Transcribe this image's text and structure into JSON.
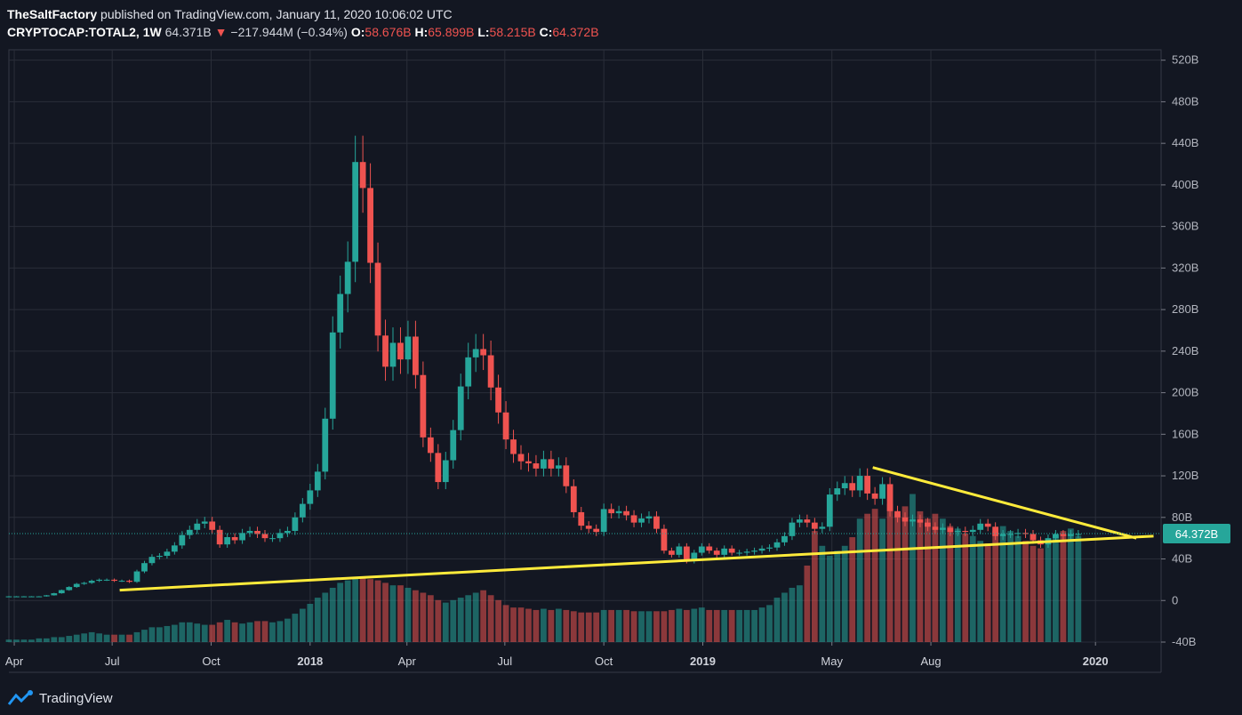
{
  "header": {
    "author": "TheSaltFactory",
    "published": "published on TradingView.com, January 11, 2020 10:06:02 UTC",
    "symbol": "CRYPTOCAP:TOTAL2, 1W",
    "last": "64.371B",
    "change": "−217.944M (−0.34%)",
    "open_label": "O:",
    "open": "58.676B",
    "high_label": "H:",
    "high": "65.899B",
    "low_label": "L:",
    "low": "58.215B",
    "close_label": "C:",
    "close": "64.372B"
  },
  "footer": {
    "brand": "TradingView"
  },
  "colors": {
    "background": "#131722",
    "grid": "#2a2e39",
    "up": "#26a69a",
    "down": "#ef5350",
    "trendline": "#ffeb3b",
    "price_tag": "#26a69a"
  },
  "chart_data": {
    "type": "candlestick",
    "title": "",
    "timeframe": "1W",
    "x_start": "2017-03-27",
    "x_end": "2020-03-02",
    "ylim": [
      -40,
      530
    ],
    "yticks": [
      -40,
      0,
      40,
      80,
      120,
      160,
      200,
      240,
      280,
      320,
      360,
      400,
      440,
      480,
      520
    ],
    "ytick_labels": [
      "-40B",
      "0",
      "40B",
      "80B",
      "120B",
      "160B",
      "200B",
      "240B",
      "280B",
      "320B",
      "360B",
      "400B",
      "440B",
      "480B",
      "520B"
    ],
    "xticks": [
      {
        "label": "Apr",
        "date": "2017-04-01"
      },
      {
        "label": "Jul",
        "date": "2017-07-01"
      },
      {
        "label": "Oct",
        "date": "2017-10-01"
      },
      {
        "label": "2018",
        "date": "2018-01-01",
        "bold": true
      },
      {
        "label": "Apr",
        "date": "2018-04-01"
      },
      {
        "label": "Jul",
        "date": "2018-07-01"
      },
      {
        "label": "Oct",
        "date": "2018-10-01"
      },
      {
        "label": "2019",
        "date": "2019-01-01",
        "bold": true
      },
      {
        "label": "May",
        "date": "2019-05-01"
      },
      {
        "label": "Aug",
        "date": "2019-08-01"
      },
      {
        "label": "2020",
        "date": "2020-01-01",
        "bold": true
      }
    ],
    "last_price": 64.372,
    "last_price_label": "64.372B",
    "grid": true,
    "closes": [
      4,
      4,
      4,
      4,
      4,
      5,
      7,
      10,
      13,
      16,
      17,
      19,
      20,
      20,
      19,
      19,
      18,
      28,
      36,
      42,
      43,
      47,
      53,
      63,
      68,
      74,
      76,
      68,
      54,
      61,
      58,
      65,
      67,
      64,
      60,
      60,
      65,
      67,
      80,
      93,
      106,
      124,
      175,
      258,
      295,
      326,
      422,
      397,
      325,
      255,
      225,
      248,
      232,
      254,
      217,
      157,
      142,
      114,
      135,
      164,
      206,
      234,
      242,
      236,
      205,
      181,
      155,
      141,
      134,
      132,
      127,
      136,
      127,
      130,
      110,
      85,
      72,
      69,
      66,
      88,
      84,
      86,
      82,
      75,
      79,
      81,
      69,
      48,
      44,
      52,
      38,
      46,
      52,
      48,
      44,
      50,
      46,
      46,
      47,
      48,
      50,
      51,
      56,
      62,
      75,
      78,
      75,
      69,
      71,
      102,
      108,
      113,
      106,
      120,
      103,
      98,
      112,
      86,
      80,
      76,
      78,
      75,
      71,
      68,
      70,
      66,
      67,
      66,
      68,
      74,
      71,
      62,
      64,
      64,
      65,
      64,
      58,
      54,
      60,
      64,
      62,
      64,
      64
    ],
    "volume_note": "volume histogram shown at bottom (values read in chart units)",
    "volumes": [
      2,
      2,
      2,
      2,
      3,
      3,
      4,
      4,
      5,
      6,
      7,
      8,
      7,
      6,
      6,
      6,
      6,
      8,
      10,
      12,
      12,
      13,
      14,
      16,
      16,
      15,
      14,
      14,
      16,
      18,
      16,
      15,
      16,
      17,
      17,
      16,
      17,
      19,
      23,
      27,
      31,
      36,
      40,
      44,
      48,
      50,
      52,
      52,
      51,
      50,
      48,
      46,
      46,
      44,
      42,
      40,
      38,
      34,
      32,
      34,
      36,
      38,
      40,
      42,
      38,
      34,
      30,
      28,
      28,
      27,
      26,
      27,
      26,
      27,
      26,
      25,
      24,
      24,
      24,
      26,
      26,
      26,
      26,
      25,
      25,
      25,
      25,
      25,
      26,
      27,
      26,
      27,
      28,
      26,
      26,
      26,
      26,
      26,
      26,
      26,
      28,
      30,
      36,
      40,
      44,
      46,
      62,
      90,
      78,
      70,
      74,
      78,
      85,
      100,
      104,
      108,
      100,
      112,
      104,
      110,
      120,
      106,
      100,
      104,
      100,
      94,
      92,
      88,
      86,
      82,
      80,
      90,
      94,
      90,
      86,
      82,
      78,
      76,
      80,
      86,
      90,
      92,
      86
    ],
    "trendlines": [
      {
        "name": "lower",
        "points": [
          [
            "2017-07-08",
            10
          ],
          [
            "2020-02-24",
            62
          ]
        ]
      },
      {
        "name": "upper",
        "points": [
          [
            "2019-06-08",
            128
          ],
          [
            "2020-02-08",
            60
          ]
        ]
      }
    ]
  }
}
